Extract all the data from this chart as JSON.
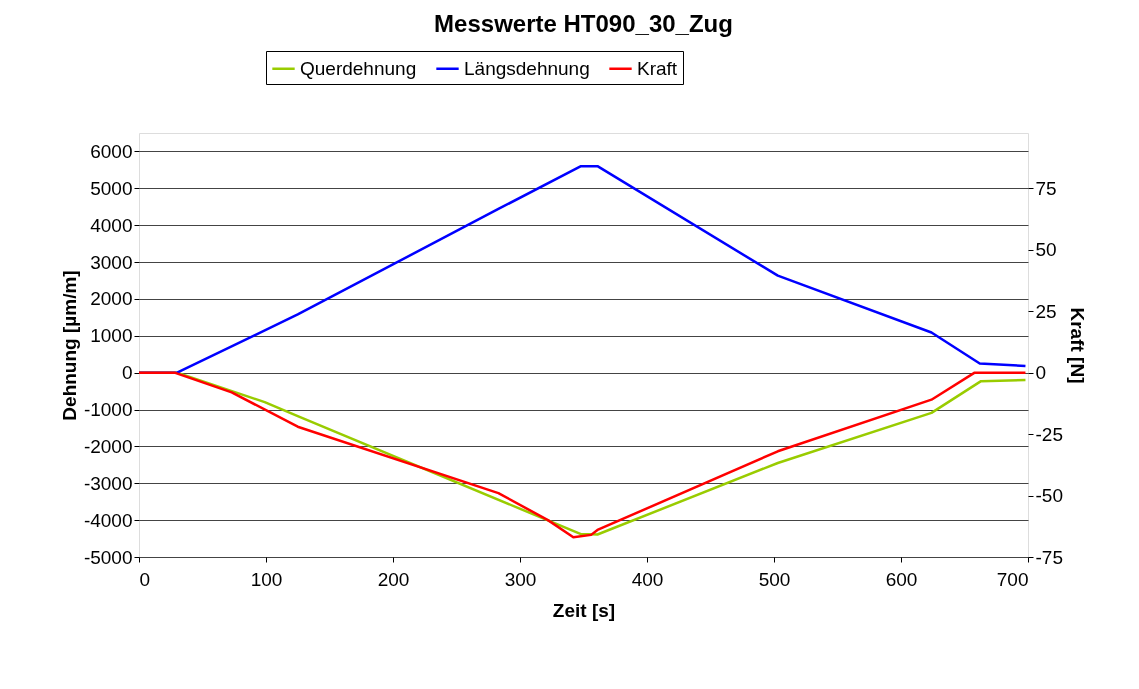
{
  "chart_data": {
    "type": "line",
    "title": "Messwerte HT090_30_Zug",
    "xlabel": "Zeit [s]",
    "ylabel": "Dehnung [µm/m]",
    "y2label": "Kraft [N]",
    "xlim": [
      0,
      700
    ],
    "xticks": [
      0,
      100,
      200,
      300,
      400,
      500,
      600,
      700
    ],
    "ylim": [
      -5000,
      6500
    ],
    "yticks": [
      -5000,
      -4000,
      -3000,
      -2000,
      -1000,
      0,
      1000,
      2000,
      3000,
      4000,
      5000,
      6000
    ],
    "y2lim": [
      -75,
      97.5
    ],
    "y2ticks": [
      -75,
      -50,
      -25,
      0,
      25,
      50,
      75
    ],
    "grid": "y",
    "legend": "top",
    "line_style": "solid",
    "series": [
      {
        "name": "Querdehnung",
        "color": "#99cc00",
        "x": [
          0,
          30,
          99,
          125,
          348,
          356,
          361,
          503,
          624,
          663,
          698
        ],
        "values": [
          0,
          0,
          -800,
          -1180,
          -4380,
          -4380,
          -4390,
          -2450,
          -1090,
          -230,
          -200
        ]
      },
      {
        "name": "Längsdehnung",
        "color": "#0000ff",
        "x": [
          0,
          30,
          125,
          283,
          348,
          361,
          503,
          624,
          662,
          698
        ],
        "values": [
          0,
          0,
          1580,
          4440,
          5600,
          5600,
          2630,
          1090,
          250,
          180
        ]
      },
      {
        "name": "Kraft",
        "color": "#ff0000",
        "axis": "y2",
        "x": [
          0,
          28,
          73,
          125,
          283,
          322,
          342,
          356,
          361,
          503,
          624,
          658,
          698
        ],
        "values": [
          0,
          0,
          -8,
          -22,
          -49,
          -60,
          -67,
          -66,
          -64,
          -32,
          -11,
          0,
          0
        ]
      }
    ]
  }
}
